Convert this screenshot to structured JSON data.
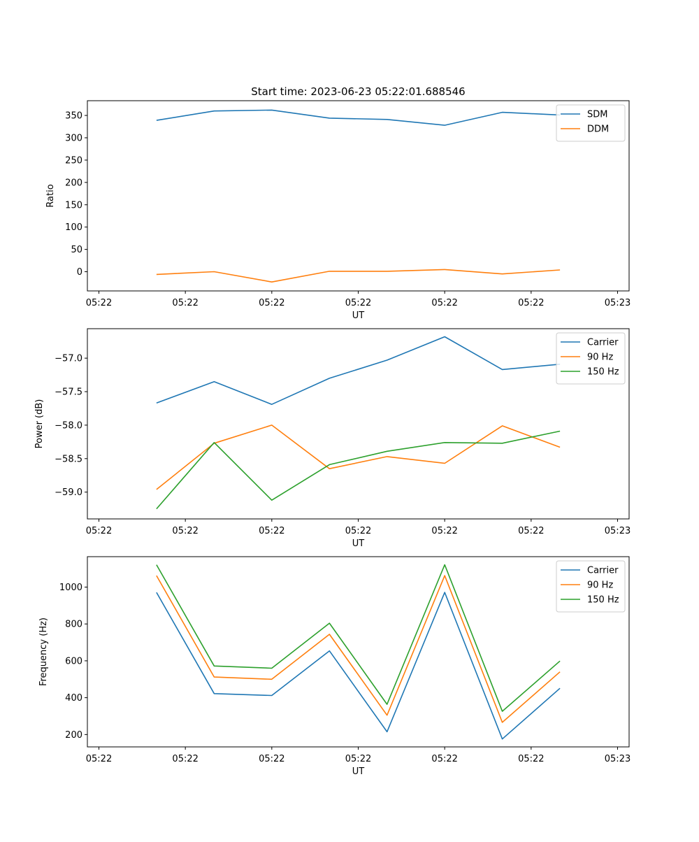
{
  "title": "Start time: 2023-06-23 05:22:01.688546",
  "x_tick_labels": [
    "05:22",
    "05:22",
    "05:22",
    "05:22",
    "05:22",
    "05:22",
    "05:23"
  ],
  "chart_data": [
    {
      "type": "line",
      "xlabel": "UT",
      "ylabel": "Ratio",
      "ylim": [
        -43,
        383
      ],
      "yticks": [
        0,
        50,
        100,
        150,
        200,
        250,
        300,
        350
      ],
      "x": [
        1,
        2,
        3,
        4,
        5,
        6,
        7,
        8
      ],
      "xlim": [
        -0.2,
        9.2
      ],
      "legend": "top-right",
      "series": [
        {
          "name": "SDM",
          "color": "#1f77b4",
          "values": [
            339,
            360,
            362,
            344,
            341,
            328,
            357,
            351
          ]
        },
        {
          "name": "DDM",
          "color": "#ff7f0e",
          "values": [
            -6,
            0,
            -23,
            1,
            1,
            5,
            -5,
            4
          ]
        }
      ]
    },
    {
      "type": "line",
      "xlabel": "UT",
      "ylabel": "Power (dB)",
      "ylim": [
        -59.4,
        -56.56
      ],
      "yticks": [
        -59.0,
        -58.5,
        -58.0,
        -57.5,
        -57.0
      ],
      "ytick_labels": [
        "−59.0",
        "−58.5",
        "−58.0",
        "−57.5",
        "−57.0"
      ],
      "x": [
        1,
        2,
        3,
        4,
        5,
        6,
        7,
        8
      ],
      "xlim": [
        -0.2,
        9.2
      ],
      "legend": "top-right",
      "series": [
        {
          "name": "Carrier",
          "color": "#1f77b4",
          "values": [
            -57.67,
            -57.35,
            -57.69,
            -57.3,
            -57.03,
            -56.68,
            -57.17,
            -57.09
          ]
        },
        {
          "name": "90 Hz",
          "color": "#ff7f0e",
          "values": [
            -58.96,
            -58.27,
            -58.0,
            -58.65,
            -58.47,
            -58.57,
            -58.01,
            -58.33
          ]
        },
        {
          "name": "150 Hz",
          "color": "#2ca02c",
          "values": [
            -59.25,
            -58.26,
            -59.12,
            -58.59,
            -58.39,
            -58.26,
            -58.27,
            -58.09
          ]
        }
      ]
    },
    {
      "type": "line",
      "xlabel": "UT",
      "ylabel": "Frequency (Hz)",
      "ylim": [
        133,
        1165
      ],
      "yticks": [
        200,
        400,
        600,
        800,
        1000
      ],
      "x": [
        1,
        2,
        3,
        4,
        5,
        6,
        7,
        8
      ],
      "xlim": [
        -0.2,
        9.2
      ],
      "legend": "top-right",
      "series": [
        {
          "name": "Carrier",
          "color": "#1f77b4",
          "values": [
            971,
            422,
            412,
            654,
            215,
            971,
            176,
            451
          ]
        },
        {
          "name": "90 Hz",
          "color": "#ff7f0e",
          "values": [
            1062,
            512,
            500,
            744,
            305,
            1062,
            266,
            540
          ]
        },
        {
          "name": "150 Hz",
          "color": "#2ca02c",
          "values": [
            1121,
            572,
            560,
            804,
            364,
            1121,
            326,
            599
          ]
        }
      ]
    }
  ]
}
